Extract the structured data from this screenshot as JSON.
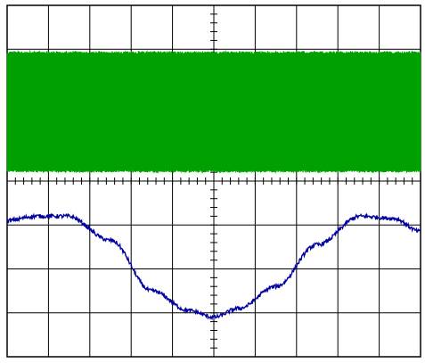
{
  "chart_data": {
    "type": "line",
    "title": "",
    "xlabel": "",
    "ylabel": "",
    "grid": true,
    "x_divisions": 10,
    "y_divisions": 8,
    "xlim": [
      0,
      10
    ],
    "ylim": [
      -4,
      4
    ],
    "colors": {
      "grid": "#000000",
      "channel_1": "#00a000",
      "channel_2": "#0000a0",
      "background": "#ffffff"
    },
    "series": [
      {
        "style": "dense-switching-band",
        "color": "#00a000",
        "band_top_div": 2.95,
        "band_bottom_div": 0.2,
        "switching_transitions": 1100
      },
      {
        "style": "sinusoid",
        "color": "#0000a0",
        "center_div": -2.0,
        "amplitude_div": 1.2,
        "period_div": 8.8,
        "x": [
          0.0,
          0.7,
          1.45,
          2.5,
          3.5,
          4.4,
          5.0,
          5.6,
          6.5,
          7.5,
          8.55,
          9.35,
          10.0
        ],
        "y": [
          -0.9,
          -0.8,
          -0.8,
          -1.35,
          -2.5,
          -2.95,
          -3.1,
          -2.9,
          -2.4,
          -1.45,
          -0.8,
          -0.85,
          -1.15
        ]
      }
    ]
  }
}
